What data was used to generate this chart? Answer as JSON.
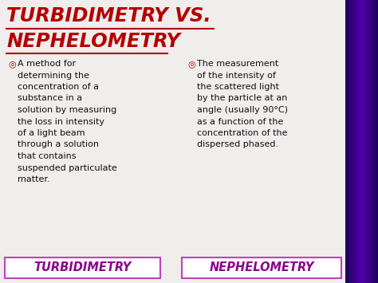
{
  "title_line1": "TURBIDIMETRY VS.",
  "title_line2": "NEPHELOMETRY",
  "title_color": "#b50000",
  "title_underline_color": "#b50000",
  "bullet_color": "#b50000",
  "text_color": "#111111",
  "bg_color": "#f0eded",
  "sidebar_color_top": "#3d0040",
  "sidebar_color_mid": "#9b1a9b",
  "sidebar_color_bot": "#7a1a80",
  "bottom_label_left": "TURBIDIMETRY",
  "bottom_label_right": "NEPHELOMETRY",
  "bottom_label_color": "#8b008b",
  "bottom_box_border": "#bb44bb",
  "bottom_box_fill": "#ffffff",
  "left_text_lines": [
    "A method for",
    "determining the",
    "concentration of a",
    "substance in a",
    "solution by measuring",
    "the loss in intensity",
    "of a light beam",
    "through a solution",
    "that contains",
    "suspended particulate",
    "matter."
  ],
  "right_text_lines": [
    "The measurement",
    "of the intensity of",
    "the scattered light",
    "by the particle at an",
    "angle (usually 90°C)",
    "as a function of the",
    "concentration of the",
    "dispersed phased."
  ],
  "bullet_symbol": "◎",
  "figwidth": 4.74,
  "figheight": 3.55,
  "dpi": 100
}
